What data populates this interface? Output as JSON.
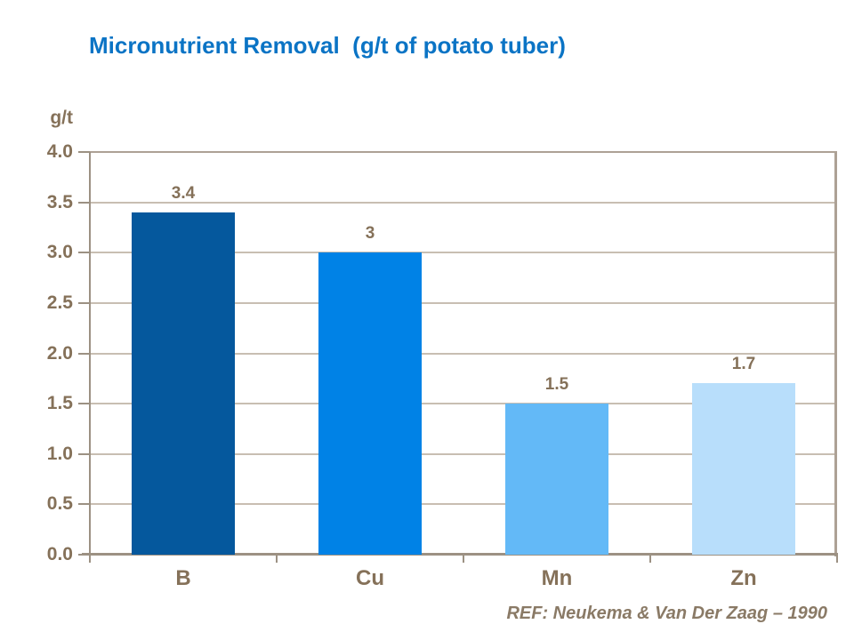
{
  "title": {
    "text": "Micronutrient Removal  (g/t of potato tuber)",
    "color": "#0b74c5"
  },
  "footer": {
    "ref_text": "REF: Neukema & Van Der Zaag – 1990",
    "color": "#8a7a66"
  },
  "chart_data": {
    "type": "bar",
    "title": "Micronutrient Removal (g/t of potato tuber)",
    "xlabel": "",
    "ylabel": "g/t",
    "categories": [
      "B",
      "Cu",
      "Mn",
      "Zn"
    ],
    "values": [
      3.4,
      3,
      1.5,
      1.7
    ],
    "value_labels": [
      "3.4",
      "3",
      "1.5",
      "1.7"
    ],
    "bar_colors": [
      "#05589d",
      "#0082e6",
      "#63b9f7",
      "#b8defb"
    ],
    "ylim": [
      0,
      4
    ],
    "ytick_step": 0.5,
    "ytick_labels": [
      "0.0",
      "0.5",
      "1.0",
      "1.5",
      "2.0",
      "2.5",
      "3.0",
      "3.5",
      "4.0"
    ],
    "grid": true,
    "legend": false,
    "label_color": "#857159",
    "axis_color": "#9c9183",
    "frame_color": "#ada195",
    "grid_color": "#c8beb2"
  }
}
